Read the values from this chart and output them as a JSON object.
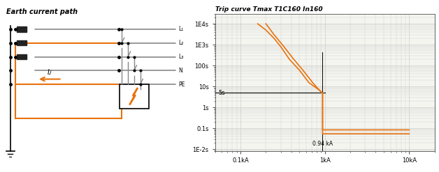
{
  "title_left": "Earth current path",
  "title_right": "Trip curve Tmax T1C160 In160",
  "orange_color": "#E8720C",
  "gray_color": "#888888",
  "dark_gray": "#555555",
  "line_color": "#333333",
  "grid_color": "#CCCCCC",
  "bg_color": "#F5F5F0",
  "labels": [
    "L₁",
    "L₂",
    "L₃",
    "N",
    "PE"
  ],
  "annotation_ik": "Iᴊ",
  "annotation_094": "0.94 kA",
  "annotation_5s": "5s",
  "xlabel_ticks": [
    "0.1kA",
    "1kA",
    "10kA"
  ],
  "xlabel_vals": [
    0.1,
    1.0,
    10.0
  ],
  "ytick_labels": [
    "1E-2s",
    "0.1s",
    "1s",
    "10s",
    "100s",
    "1E3s",
    "1E4s"
  ],
  "ytick_vals": [
    0.01,
    0.1,
    1.0,
    10.0,
    100.0,
    1000.0,
    10000.0
  ],
  "curve1_x": [
    0.16,
    0.2,
    0.25,
    0.3,
    0.38,
    0.5,
    0.65,
    0.85,
    0.94,
    0.94,
    10.0
  ],
  "curve1_y": [
    10000,
    5000,
    2000,
    800,
    200,
    60,
    15,
    7,
    5,
    0.085,
    0.085
  ],
  "curve2_x": [
    0.2,
    0.25,
    0.32,
    0.42,
    0.55,
    0.72,
    0.92,
    0.94,
    0.94,
    10.0
  ],
  "curve2_y": [
    10000,
    3000,
    900,
    220,
    60,
    15,
    5,
    5,
    0.055,
    0.055
  ]
}
